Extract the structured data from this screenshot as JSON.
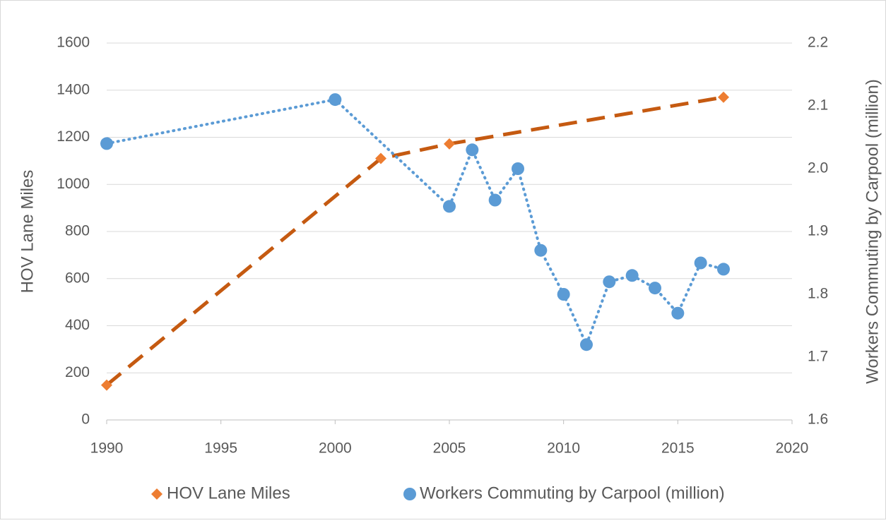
{
  "chart_data": {
    "type": "line",
    "y_label": "HOV Lane Miles",
    "y2_label": "Workers Commuting by Carpool (million)",
    "xlim": [
      1990,
      2020
    ],
    "xticks": [
      1990,
      1995,
      2000,
      2005,
      2010,
      2015,
      2020
    ],
    "ylim": [
      0,
      1600
    ],
    "yticks": [
      0,
      200,
      400,
      600,
      800,
      1000,
      1200,
      1400,
      1600
    ],
    "y2lim": [
      1.6,
      2.2
    ],
    "y2ticks": [
      1.6,
      1.7,
      1.8,
      1.9,
      {
        "value": 2,
        "label": "2.0"
      },
      2.1,
      2.2
    ],
    "grid": true,
    "legend": "bottom",
    "series": [
      {
        "name": "HOV Lane Miles",
        "color": "#ed7d31",
        "line_color": "#c55a11",
        "marker": "diamond",
        "line_style": "dashed",
        "x": [
          1990,
          2002,
          2005,
          2017
        ],
        "values": [
          148,
          1110,
          1172,
          1370
        ]
      },
      {
        "name": "Workers Commuting by Carpool (million)",
        "color": "#5b9bd5",
        "marker": "circle",
        "line_style": "dotted",
        "axis": "y2",
        "x": [
          1990,
          2000,
          2005,
          2006,
          2007,
          2008,
          2009,
          2010,
          2011,
          2012,
          2013,
          2014,
          2015,
          2016,
          2017
        ],
        "values": [
          2.04,
          2.11,
          1.94,
          2.03,
          1.95,
          2.0,
          1.87,
          1.8,
          1.72,
          1.82,
          1.83,
          1.81,
          1.77,
          1.85,
          1.84
        ]
      }
    ]
  }
}
